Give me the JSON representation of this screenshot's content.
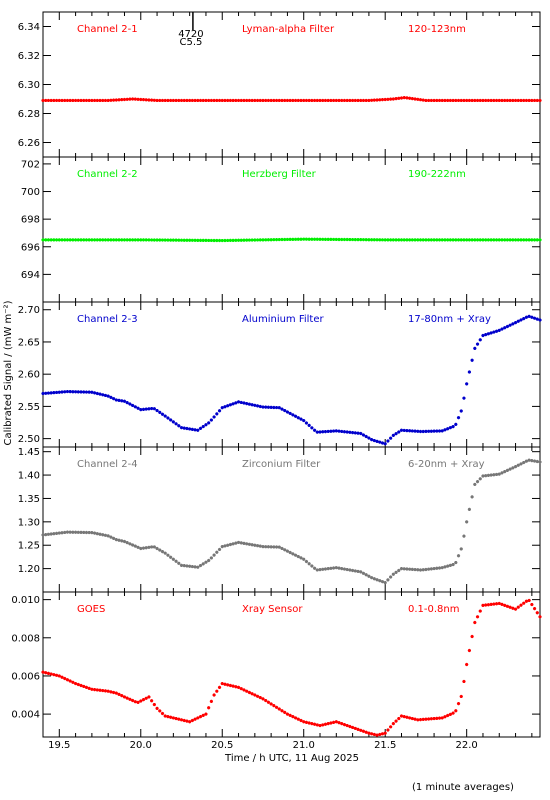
{
  "chart_data": {
    "type": "scatter",
    "xlabel": "Time / h UTC, 11 Aug 2025",
    "ylabel": "Calibrated Signal / (mW m⁻²)",
    "note": "(1 minute averages)",
    "event_marker": {
      "x": 20.32,
      "labels": [
        "4720",
        "C5.5"
      ]
    },
    "x_ticks": [
      19.5,
      20.0,
      20.5,
      21.0,
      21.5,
      22.0
    ],
    "x_tick_labels": [
      "19.5",
      "20.0",
      "20.5",
      "21.0",
      "21.5",
      "22.0"
    ],
    "xlim": [
      19.4,
      22.45
    ],
    "panels": [
      {
        "channel": "Channel 2-1",
        "filter": "Lyman-alpha Filter",
        "band": "120-123nm",
        "color": "#ff0000",
        "ylim": [
          6.25,
          6.35
        ],
        "yticks": [
          6.26,
          6.28,
          6.3,
          6.32,
          6.34
        ],
        "ytick_labels": [
          "6.26",
          "6.28",
          "6.30",
          "6.32",
          "6.34"
        ],
        "points": [
          [
            19.4,
            6.289
          ],
          [
            19.6,
            6.289
          ],
          [
            19.8,
            6.289
          ],
          [
            19.95,
            6.29
          ],
          [
            20.1,
            6.289
          ],
          [
            20.5,
            6.289
          ],
          [
            21.0,
            6.289
          ],
          [
            21.4,
            6.289
          ],
          [
            21.55,
            6.29
          ],
          [
            21.62,
            6.291
          ],
          [
            21.75,
            6.289
          ],
          [
            22.0,
            6.289
          ],
          [
            22.45,
            6.289
          ]
        ]
      },
      {
        "channel": "Channel 2-2",
        "filter": "Herzberg Filter",
        "band": "190-222nm",
        "color": "#00ee00",
        "ylim": [
          692.0,
          702.5
        ],
        "yticks": [
          694,
          696,
          698,
          700,
          702
        ],
        "ytick_labels": [
          "694",
          "696",
          "698",
          "700",
          "702"
        ],
        "points": [
          [
            19.4,
            696.5
          ],
          [
            20.0,
            696.5
          ],
          [
            20.5,
            696.45
          ],
          [
            21.0,
            696.55
          ],
          [
            21.5,
            696.5
          ],
          [
            22.0,
            696.5
          ],
          [
            22.45,
            696.5
          ]
        ]
      },
      {
        "channel": "Channel 2-3",
        "filter": "Aluminium Filter",
        "band": "17-80nm + Xray",
        "color": "#0000cc",
        "ylim": [
          2.487,
          2.712
        ],
        "yticks": [
          2.5,
          2.55,
          2.6,
          2.65,
          2.7
        ],
        "ytick_labels": [
          "2.50",
          "2.55",
          "2.60",
          "2.65",
          "2.70"
        ],
        "points": [
          [
            19.4,
            2.57
          ],
          [
            19.55,
            2.573
          ],
          [
            19.7,
            2.572
          ],
          [
            19.8,
            2.566
          ],
          [
            19.85,
            2.56
          ],
          [
            19.9,
            2.558
          ],
          [
            20.0,
            2.545
          ],
          [
            20.08,
            2.547
          ],
          [
            20.15,
            2.535
          ],
          [
            20.25,
            2.517
          ],
          [
            20.35,
            2.513
          ],
          [
            20.42,
            2.525
          ],
          [
            20.5,
            2.548
          ],
          [
            20.6,
            2.557
          ],
          [
            20.75,
            2.549
          ],
          [
            20.85,
            2.548
          ],
          [
            21.0,
            2.528
          ],
          [
            21.08,
            2.51
          ],
          [
            21.2,
            2.512
          ],
          [
            21.35,
            2.508
          ],
          [
            21.42,
            2.498
          ],
          [
            21.5,
            2.492
          ],
          [
            21.55,
            2.505
          ],
          [
            21.6,
            2.513
          ],
          [
            21.72,
            2.511
          ],
          [
            21.85,
            2.512
          ],
          [
            21.93,
            2.52
          ],
          [
            21.97,
            2.545
          ],
          [
            22.0,
            2.585
          ],
          [
            22.05,
            2.64
          ],
          [
            22.1,
            2.66
          ],
          [
            22.2,
            2.668
          ],
          [
            22.3,
            2.68
          ],
          [
            22.38,
            2.69
          ],
          [
            22.45,
            2.684
          ]
        ]
      },
      {
        "channel": "Channel 2-4",
        "filter": "Zirconium Filter",
        "band": "6-20nm + Xray",
        "color": "#777777",
        "ylim": [
          1.15,
          1.46
        ],
        "yticks": [
          1.2,
          1.25,
          1.3,
          1.35,
          1.4,
          1.45
        ],
        "ytick_labels": [
          "1.20",
          "1.25",
          "1.30",
          "1.35",
          "1.40",
          "1.45"
        ],
        "points": [
          [
            19.4,
            1.272
          ],
          [
            19.55,
            1.278
          ],
          [
            19.7,
            1.277
          ],
          [
            19.8,
            1.27
          ],
          [
            19.85,
            1.262
          ],
          [
            19.9,
            1.258
          ],
          [
            20.0,
            1.243
          ],
          [
            20.08,
            1.247
          ],
          [
            20.15,
            1.233
          ],
          [
            20.25,
            1.207
          ],
          [
            20.35,
            1.203
          ],
          [
            20.42,
            1.218
          ],
          [
            20.5,
            1.247
          ],
          [
            20.6,
            1.256
          ],
          [
            20.75,
            1.247
          ],
          [
            20.85,
            1.246
          ],
          [
            21.0,
            1.22
          ],
          [
            21.08,
            1.197
          ],
          [
            21.2,
            1.202
          ],
          [
            21.35,
            1.193
          ],
          [
            21.42,
            1.18
          ],
          [
            21.5,
            1.17
          ],
          [
            21.55,
            1.188
          ],
          [
            21.6,
            1.2
          ],
          [
            21.72,
            1.197
          ],
          [
            21.85,
            1.202
          ],
          [
            21.93,
            1.21
          ],
          [
            21.97,
            1.245
          ],
          [
            22.0,
            1.3
          ],
          [
            22.05,
            1.38
          ],
          [
            22.1,
            1.398
          ],
          [
            22.2,
            1.402
          ],
          [
            22.3,
            1.418
          ],
          [
            22.38,
            1.432
          ],
          [
            22.45,
            1.428
          ]
        ]
      },
      {
        "channel": "GOES",
        "filter": "Xray Sensor",
        "band": "0.1-0.8nm",
        "color": "#ff0000",
        "ylim": [
          0.0028,
          0.0104
        ],
        "yticks": [
          0.004,
          0.006,
          0.008,
          0.01
        ],
        "ytick_labels": [
          "0.004",
          "0.006",
          "0.008",
          "0.010"
        ],
        "points": [
          [
            19.4,
            0.0062
          ],
          [
            19.5,
            0.006
          ],
          [
            19.6,
            0.0056
          ],
          [
            19.7,
            0.0053
          ],
          [
            19.8,
            0.0052
          ],
          [
            19.85,
            0.0051
          ],
          [
            19.9,
            0.0049
          ],
          [
            19.98,
            0.0046
          ],
          [
            20.05,
            0.0049
          ],
          [
            20.1,
            0.0043
          ],
          [
            20.15,
            0.0039
          ],
          [
            20.2,
            0.0038
          ],
          [
            20.3,
            0.0036
          ],
          [
            20.4,
            0.004
          ],
          [
            20.45,
            0.005
          ],
          [
            20.5,
            0.0056
          ],
          [
            20.6,
            0.0054
          ],
          [
            20.75,
            0.0048
          ],
          [
            20.9,
            0.004
          ],
          [
            21.0,
            0.0036
          ],
          [
            21.1,
            0.0034
          ],
          [
            21.2,
            0.0036
          ],
          [
            21.3,
            0.0033
          ],
          [
            21.4,
            0.003
          ],
          [
            21.45,
            0.0029
          ],
          [
            21.5,
            0.003
          ],
          [
            21.55,
            0.0035
          ],
          [
            21.6,
            0.0039
          ],
          [
            21.7,
            0.0037
          ],
          [
            21.85,
            0.0038
          ],
          [
            21.93,
            0.0041
          ],
          [
            21.97,
            0.005
          ],
          [
            22.0,
            0.0066
          ],
          [
            22.05,
            0.0088
          ],
          [
            22.1,
            0.0097
          ],
          [
            22.2,
            0.0098
          ],
          [
            22.3,
            0.0095
          ],
          [
            22.38,
            0.01
          ],
          [
            22.45,
            0.0091
          ]
        ]
      }
    ]
  }
}
